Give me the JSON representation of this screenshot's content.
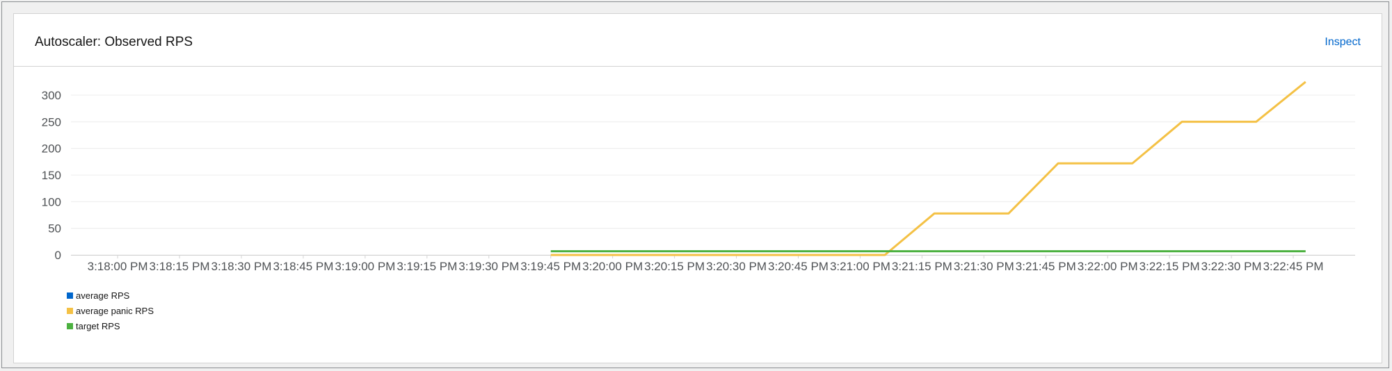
{
  "card": {
    "title": "Autoscaler: Observed RPS",
    "inspect_label": "Inspect"
  },
  "chart_data": {
    "type": "line",
    "x_tick_labels": [
      "3:18:00 PM",
      "3:18:15 PM",
      "3:18:30 PM",
      "3:18:45 PM",
      "3:19:00 PM",
      "3:19:15 PM",
      "3:19:30 PM",
      "3:19:45 PM",
      "3:20:00 PM",
      "3:20:15 PM",
      "3:20:30 PM",
      "3:20:45 PM",
      "3:21:00 PM",
      "3:21:15 PM",
      "3:21:30 PM",
      "3:21:45 PM",
      "3:22:00 PM",
      "3:22:15 PM",
      "3:22:30 PM",
      "3:22:45 PM"
    ],
    "y_ticks": [
      0,
      50,
      100,
      150,
      200,
      250,
      300
    ],
    "ylim": [
      0,
      310
    ],
    "xlim": [
      "3:17:47 PM",
      "3:23:00 PM"
    ],
    "grid": true,
    "legend_position": "bottom-left",
    "series": [
      {
        "name": "average RPS",
        "color": "#06c",
        "points": []
      },
      {
        "name": "average panic RPS",
        "color": "#f4c145",
        "points": [
          {
            "x": "3:19:45 PM",
            "y": 0
          },
          {
            "x": "3:21:06 PM",
            "y": 0
          },
          {
            "x": "3:21:18 PM",
            "y": 78
          },
          {
            "x": "3:21:36 PM",
            "y": 78
          },
          {
            "x": "3:21:48 PM",
            "y": 172
          },
          {
            "x": "3:22:06 PM",
            "y": 172
          },
          {
            "x": "3:22:18 PM",
            "y": 250
          },
          {
            "x": "3:22:36 PM",
            "y": 250
          },
          {
            "x": "3:22:48 PM",
            "y": 325
          }
        ]
      },
      {
        "name": "target RPS",
        "color": "#4cb140",
        "points": [
          {
            "x": "3:19:45 PM",
            "y": 7
          },
          {
            "x": "3:22:48 PM",
            "y": 7
          }
        ]
      }
    ]
  }
}
